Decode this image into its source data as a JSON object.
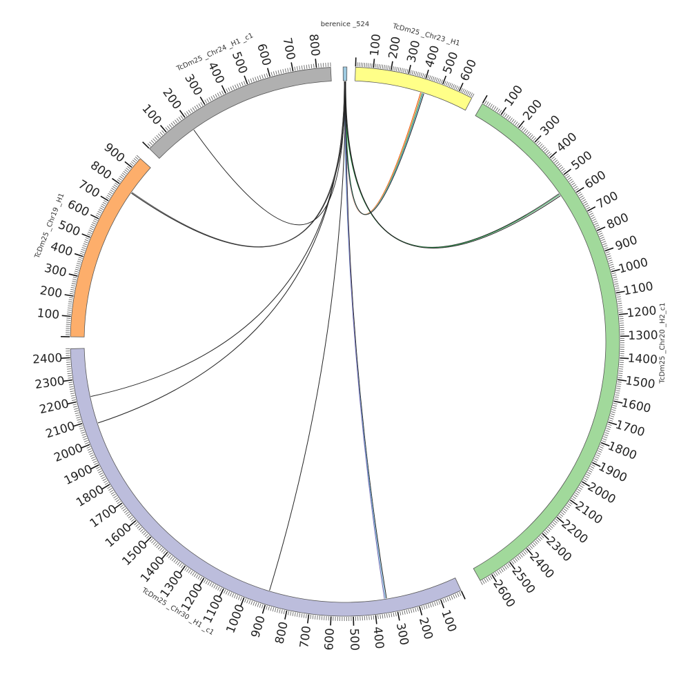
{
  "diagram": {
    "type": "circos",
    "scale_units": "kb",
    "chromosomes": [
      {
        "id": "berenice",
        "label": "berenice _524",
        "length": 10,
        "color": "#9ecae1",
        "tick_labels": false
      },
      {
        "id": "chr23",
        "label": "TcDm25 _Chr23 _H1",
        "length": 680,
        "color": "#ffff88",
        "tick_labels": true
      },
      {
        "id": "chr20",
        "label": "TcDm25 _Chr20 _H2_c1",
        "length": 2660,
        "color": "#a1d99b",
        "tick_labels": true
      },
      {
        "id": "chr30",
        "label": "TcDm25 _Chr30 _H1 _c1",
        "length": 2440,
        "color": "#bcbddc",
        "tick_labels": true
      },
      {
        "id": "chr19",
        "label": "TcDm25 _Chr19 _H1",
        "length": 960,
        "color": "#fdae6b",
        "tick_labels": true
      },
      {
        "id": "chr24",
        "label": "TcDm25 _Chr24 _H1 _c1",
        "length": 860,
        "color": "#b0b0b0",
        "tick_labels": true
      }
    ],
    "links": [
      {
        "to": "chr23",
        "pos": 395,
        "color": "#e6550d"
      },
      {
        "to": "chr23",
        "pos": 400,
        "color": "#fdae6b"
      },
      {
        "to": "chr23",
        "pos": 405,
        "color": "#31a354"
      },
      {
        "to": "chr23",
        "pos": 410,
        "color": "#6baed6"
      },
      {
        "to": "chr23",
        "pos": 415,
        "color": "#222222"
      },
      {
        "to": "chr20",
        "pos": 560,
        "color": "#222222"
      },
      {
        "to": "chr20",
        "pos": 565,
        "color": "#31a354"
      },
      {
        "to": "chr20",
        "pos": 572,
        "color": "#222222"
      },
      {
        "to": "chr30",
        "pos": 340,
        "color": "#222222"
      },
      {
        "to": "chr30",
        "pos": 345,
        "color": "#6baed6"
      },
      {
        "to": "chr30",
        "pos": 350,
        "color": "#756bb1"
      },
      {
        "to": "chr30",
        "pos": 900,
        "color": "#222222"
      },
      {
        "to": "chr30",
        "pos": 2080,
        "color": "#222222"
      },
      {
        "to": "chr30",
        "pos": 2210,
        "color": "#222222"
      },
      {
        "to": "chr19",
        "pos": 795,
        "color": "#222222"
      },
      {
        "to": "chr19",
        "pos": 800,
        "color": "#444444"
      },
      {
        "to": "chr24",
        "pos": 200,
        "color": "#222222"
      }
    ]
  }
}
